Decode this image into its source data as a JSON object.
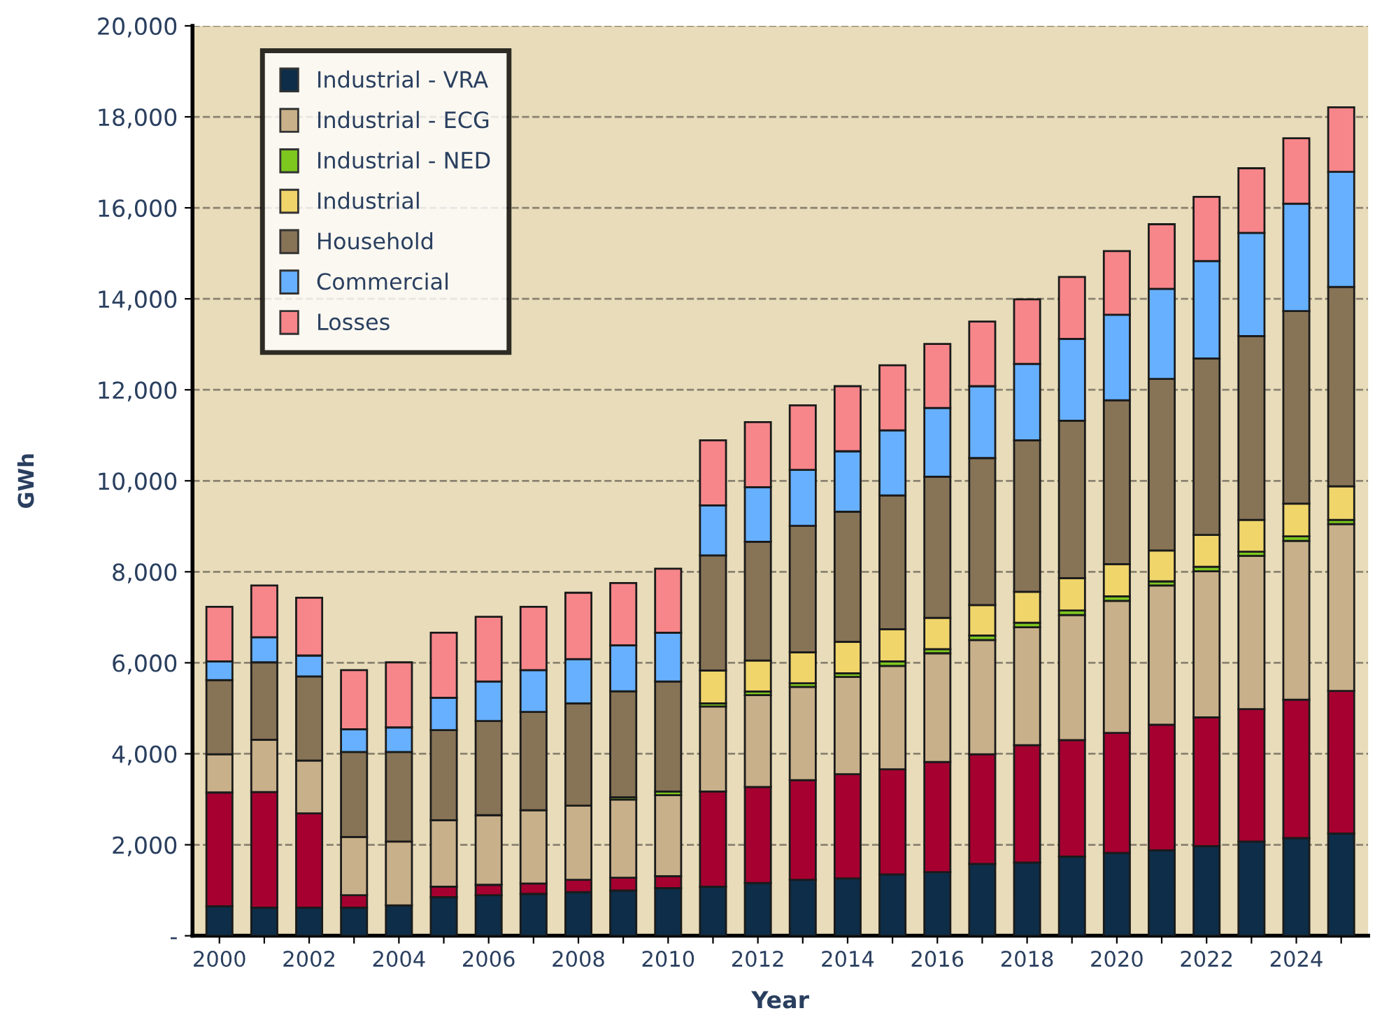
{
  "chart_data": {
    "type": "bar",
    "stacked": true,
    "xlabel": "Year",
    "ylabel": "GWh",
    "categories": [
      "2000",
      null,
      "2002",
      null,
      "2004",
      null,
      "2006",
      null,
      "2008",
      null,
      "2010",
      null,
      "2012",
      null,
      "2014",
      null,
      "2016",
      null,
      "2018",
      null,
      "2020",
      null,
      "2022",
      null,
      "2024",
      null
    ],
    "ylim": [
      0,
      20000
    ],
    "yticks": [
      {
        "value": 0,
        "label": "-"
      },
      {
        "value": 2000,
        "label": "2,000"
      },
      {
        "value": 4000,
        "label": "4,000"
      },
      {
        "value": 6000,
        "label": "6,000"
      },
      {
        "value": 8000,
        "label": "8,000"
      },
      {
        "value": 10000,
        "label": "10,000"
      },
      {
        "value": 12000,
        "label": "12,000"
      },
      {
        "value": 14000,
        "label": "14,000"
      },
      {
        "value": 16000,
        "label": "16,000"
      },
      {
        "value": 18000,
        "label": "18,000"
      },
      {
        "value": 20000,
        "label": "20,000"
      }
    ],
    "grid": "y",
    "legend": "top left",
    "series": [
      {
        "name": "Industrial - VRA",
        "color": "#0d2d48",
        "values": [
          650,
          620,
          620,
          620,
          670,
          850,
          890,
          920,
          960,
          995,
          1050,
          1080,
          1160,
          1230,
          1260,
          1350,
          1400,
          1580,
          1610,
          1740,
          1820,
          1880,
          1970,
          2070,
          2150,
          2250
        ]
      },
      {
        "color": "#a50030",
        "values": [
          2500,
          2540,
          2070,
          270,
          0,
          230,
          230,
          230,
          270,
          280,
          260,
          2090,
          2110,
          2190,
          2290,
          2310,
          2420,
          2410,
          2580,
          2560,
          2640,
          2760,
          2830,
          2910,
          3040,
          3130
        ]
      },
      {
        "name": "Industrial - ECG",
        "color": "#c8b08a",
        "values": [
          840,
          1150,
          1160,
          1280,
          1400,
          1460,
          1530,
          1610,
          1630,
          1720,
          1780,
          1870,
          2020,
          2050,
          2140,
          2270,
          2390,
          2510,
          2590,
          2750,
          2900,
          3060,
          3210,
          3370,
          3490,
          3670
        ]
      },
      {
        "name": "Industrial - NED",
        "color": "#7dc71f",
        "values": [
          0,
          0,
          0,
          0,
          0,
          0,
          0,
          0,
          0,
          50,
          80,
          70,
          80,
          80,
          80,
          100,
          90,
          100,
          100,
          100,
          100,
          90,
          100,
          90,
          100,
          90
        ]
      },
      {
        "name": "Industrial",
        "color": "#f0d56a",
        "values": [
          0,
          0,
          0,
          0,
          0,
          0,
          0,
          0,
          0,
          0,
          0,
          720,
          680,
          680,
          690,
          710,
          690,
          670,
          680,
          710,
          710,
          680,
          700,
          700,
          720,
          740
        ]
      },
      {
        "name": "Household",
        "color": "#877356",
        "values": [
          1630,
          1700,
          1850,
          1870,
          1970,
          1980,
          2070,
          2160,
          2250,
          2330,
          2420,
          2530,
          2610,
          2780,
          2860,
          2940,
          3100,
          3230,
          3330,
          3460,
          3600,
          3770,
          3880,
          4040,
          4230,
          4380
        ]
      },
      {
        "name": "Commercial",
        "color": "#66b0ff",
        "values": [
          410,
          550,
          460,
          500,
          540,
          710,
          870,
          920,
          970,
          1010,
          1070,
          1100,
          1200,
          1230,
          1330,
          1430,
          1510,
          1580,
          1680,
          1800,
          1880,
          1980,
          2140,
          2270,
          2360,
          2530
        ]
      },
      {
        "name": "Losses",
        "color": "#f7868a",
        "values": [
          1200,
          1140,
          1270,
          1300,
          1430,
          1430,
          1420,
          1390,
          1460,
          1370,
          1410,
          1430,
          1430,
          1420,
          1430,
          1430,
          1410,
          1420,
          1420,
          1360,
          1400,
          1420,
          1410,
          1420,
          1440,
          1420
        ]
      }
    ]
  }
}
